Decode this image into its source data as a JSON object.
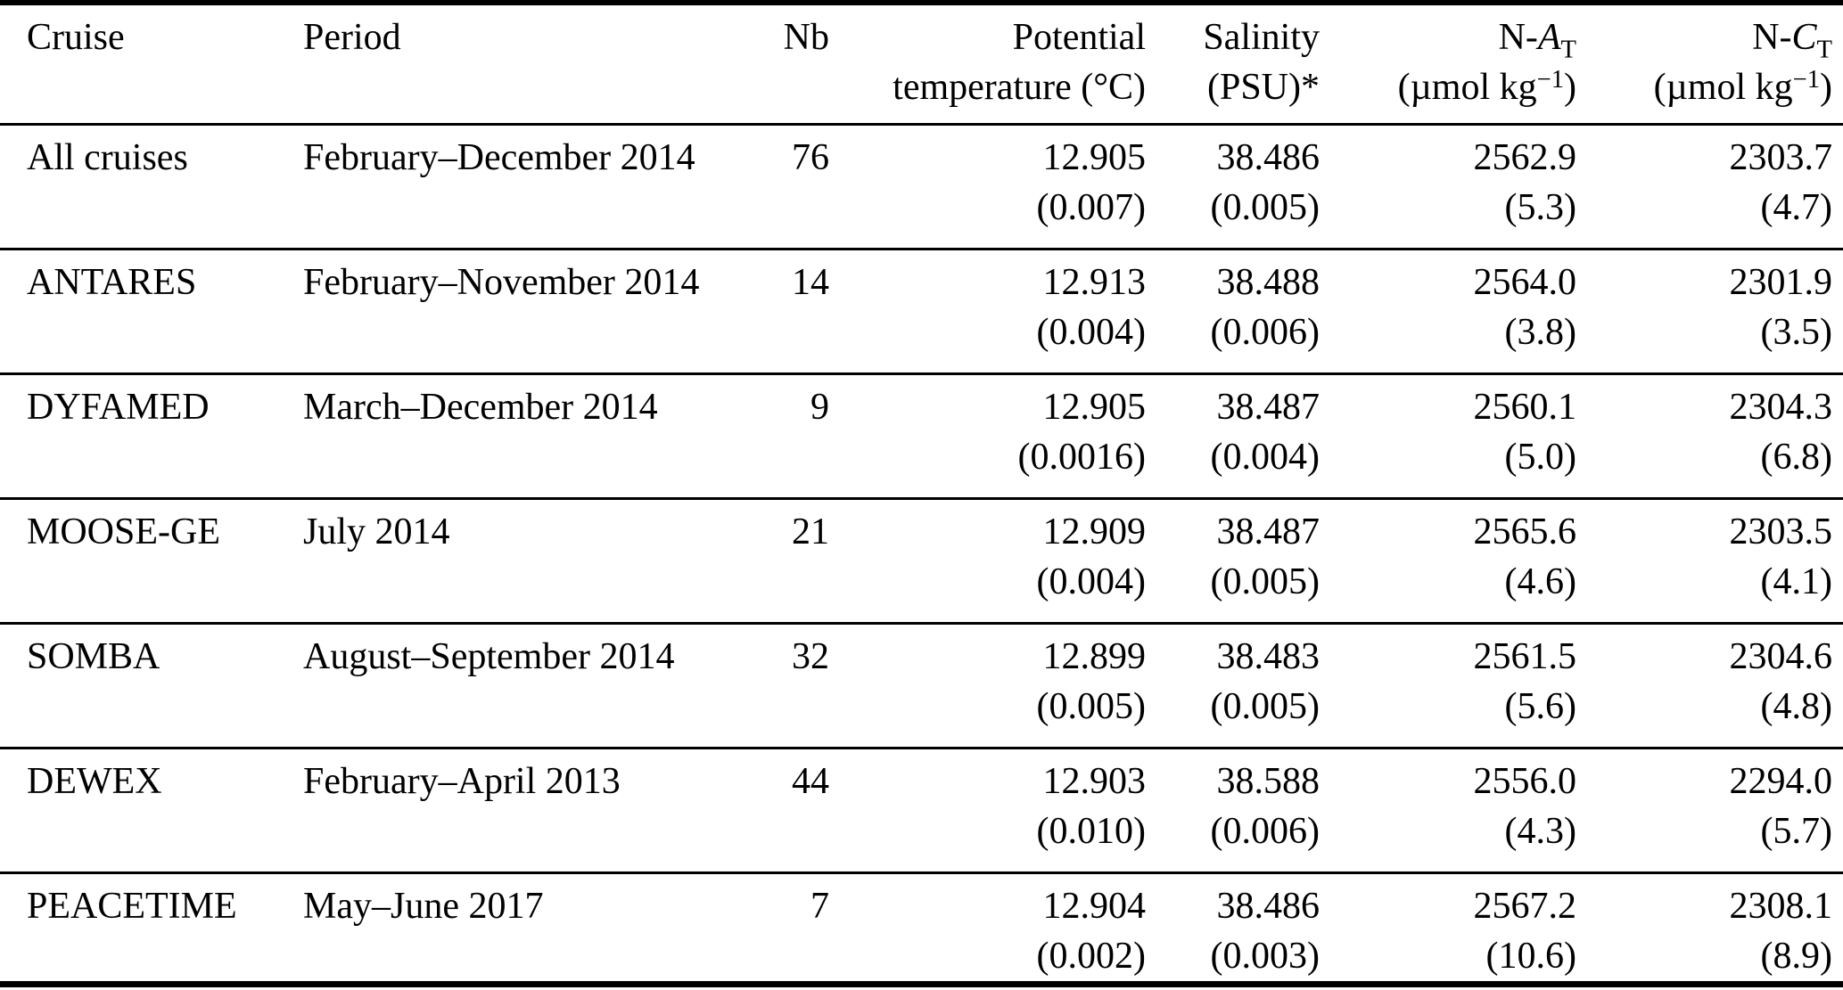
{
  "colors": {
    "text": "#000000",
    "background": "#ffffff",
    "rule": "#000000"
  },
  "table": {
    "header": {
      "cruise": "Cruise",
      "period": "Period",
      "nb": "Nb",
      "potential_temperature": {
        "line1": "Potential",
        "line2": "temperature (°C)"
      },
      "salinity": {
        "line1": "Salinity",
        "line2": "(PSU)*"
      },
      "n_at": {
        "prefix": "N-",
        "symbol": "A",
        "subscript": "T",
        "unit_open": "(µmol kg",
        "unit_sup": "−1",
        "unit_close": ")"
      },
      "n_ct": {
        "prefix": "N-",
        "symbol": "C",
        "subscript": "T",
        "unit_open": "(µmol kg",
        "unit_sup": "−1",
        "unit_close": ")"
      }
    },
    "rows": [
      {
        "cruise": "All cruises",
        "period": "February–December 2014",
        "nb": "76",
        "potential_temperature": {
          "value": "12.905",
          "sd": "(0.007)"
        },
        "salinity": {
          "value": "38.486",
          "sd": "(0.005)"
        },
        "n_at": {
          "value": "2562.9",
          "sd": "(5.3)"
        },
        "n_ct": {
          "value": "2303.7",
          "sd": "(4.7)"
        }
      },
      {
        "cruise": "ANTARES",
        "period": "February–November 2014",
        "nb": "14",
        "potential_temperature": {
          "value": "12.913",
          "sd": "(0.004)"
        },
        "salinity": {
          "value": "38.488",
          "sd": "(0.006)"
        },
        "n_at": {
          "value": "2564.0",
          "sd": "(3.8)"
        },
        "n_ct": {
          "value": "2301.9",
          "sd": "(3.5)"
        }
      },
      {
        "cruise": "DYFAMED",
        "period": "March–December 2014",
        "nb": "9",
        "potential_temperature": {
          "value": "12.905",
          "sd": "(0.0016)"
        },
        "salinity": {
          "value": "38.487",
          "sd": "(0.004)"
        },
        "n_at": {
          "value": "2560.1",
          "sd": "(5.0)"
        },
        "n_ct": {
          "value": "2304.3",
          "sd": "(6.8)"
        }
      },
      {
        "cruise": "MOOSE-GE",
        "period": "July 2014",
        "nb": "21",
        "potential_temperature": {
          "value": "12.909",
          "sd": "(0.004)"
        },
        "salinity": {
          "value": "38.487",
          "sd": "(0.005)"
        },
        "n_at": {
          "value": "2565.6",
          "sd": "(4.6)"
        },
        "n_ct": {
          "value": "2303.5",
          "sd": "(4.1)"
        }
      },
      {
        "cruise": "SOMBA",
        "period": "August–September 2014",
        "nb": "32",
        "potential_temperature": {
          "value": "12.899",
          "sd": "(0.005)"
        },
        "salinity": {
          "value": "38.483",
          "sd": "(0.005)"
        },
        "n_at": {
          "value": "2561.5",
          "sd": "(5.6)"
        },
        "n_ct": {
          "value": "2304.6",
          "sd": "(4.8)"
        }
      },
      {
        "cruise": "DEWEX",
        "period": "February–April 2013",
        "nb": "44",
        "potential_temperature": {
          "value": "12.903",
          "sd": "(0.010)"
        },
        "salinity": {
          "value": "38.588",
          "sd": "(0.006)"
        },
        "n_at": {
          "value": "2556.0",
          "sd": "(4.3)"
        },
        "n_ct": {
          "value": "2294.0",
          "sd": "(5.7)"
        }
      },
      {
        "cruise": "PEACETIME",
        "period": "May–June 2017",
        "nb": "7",
        "potential_temperature": {
          "value": "12.904",
          "sd": "(0.002)"
        },
        "salinity": {
          "value": "38.486",
          "sd": "(0.003)"
        },
        "n_at": {
          "value": "2567.2",
          "sd": "(10.6)"
        },
        "n_ct": {
          "value": "2308.1",
          "sd": "(8.9)"
        }
      }
    ]
  }
}
